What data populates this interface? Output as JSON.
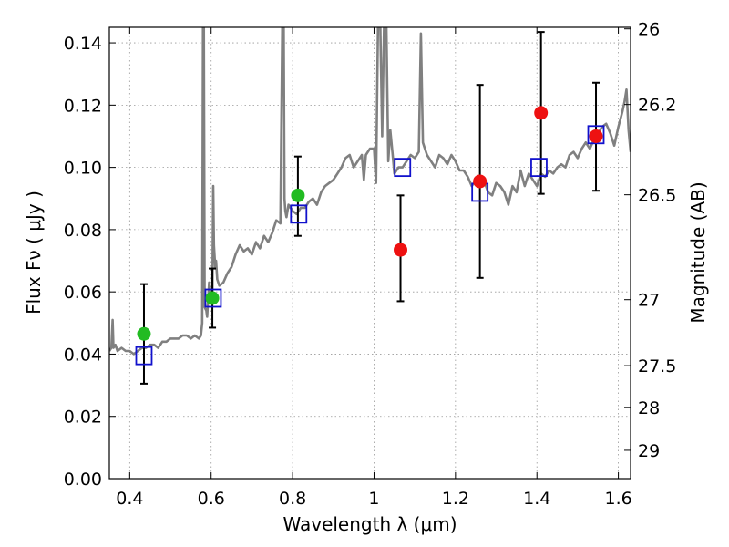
{
  "chart_data": {
    "type": "scatter",
    "xlabel": "Wavelength  λ (μm)",
    "ylabel": "Flux  Fν  ( μJy )",
    "y2label": "Magnitude (AB)",
    "xlim": [
      0.35,
      1.63
    ],
    "ylim": [
      0.0,
      0.145
    ],
    "grid": true,
    "xticks": [
      0.4,
      0.6,
      0.8,
      1.0,
      1.2,
      1.4,
      1.6
    ],
    "xtick_labels": [
      "0.4",
      "0.6",
      "0.8",
      "1",
      "1.2",
      "1.4",
      "1.6"
    ],
    "yticks": [
      0.0,
      0.02,
      0.04,
      0.06,
      0.08,
      0.1,
      0.12,
      0.14
    ],
    "ytick_labels": [
      "0.00",
      "0.02",
      "0.04",
      "0.06",
      "0.08",
      "0.10",
      "0.12",
      "0.14"
    ],
    "y2ticks": [
      {
        "flux": 0.1445,
        "label": "26"
      },
      {
        "flux": 0.1202,
        "label": "26.2"
      },
      {
        "flux": 0.0912,
        "label": "26.5"
      },
      {
        "flux": 0.0575,
        "label": "27"
      },
      {
        "flux": 0.0363,
        "label": "27.5"
      },
      {
        "flux": 0.0229,
        "label": "28"
      },
      {
        "flux": 0.0091,
        "label": "29"
      }
    ],
    "colors": {
      "model": "#808080",
      "green": "#22bb22",
      "red": "#ee1111",
      "squares": "#1111cc",
      "errorbar": "#000000",
      "grid": "#999999"
    },
    "model_spectrum": {
      "x": [
        0.35,
        0.355,
        0.358,
        0.36,
        0.365,
        0.37,
        0.38,
        0.39,
        0.4,
        0.41,
        0.42,
        0.43,
        0.44,
        0.45,
        0.46,
        0.47,
        0.48,
        0.49,
        0.5,
        0.51,
        0.52,
        0.53,
        0.54,
        0.55,
        0.56,
        0.57,
        0.575,
        0.578,
        0.58,
        0.582,
        0.584,
        0.588,
        0.59,
        0.595,
        0.6,
        0.603,
        0.605,
        0.607,
        0.61,
        0.612,
        0.615,
        0.62,
        0.63,
        0.64,
        0.65,
        0.66,
        0.67,
        0.68,
        0.69,
        0.7,
        0.71,
        0.72,
        0.73,
        0.74,
        0.75,
        0.76,
        0.77,
        0.775,
        0.778,
        0.78,
        0.782,
        0.785,
        0.79,
        0.8,
        0.81,
        0.82,
        0.83,
        0.84,
        0.85,
        0.86,
        0.87,
        0.88,
        0.89,
        0.9,
        0.91,
        0.92,
        0.93,
        0.94,
        0.95,
        0.96,
        0.97,
        0.975,
        0.98,
        0.99,
        1.0,
        1.005,
        1.01,
        1.015,
        1.02,
        1.025,
        1.03,
        1.035,
        1.04,
        1.045,
        1.05,
        1.06,
        1.07,
        1.08,
        1.09,
        1.1,
        1.11,
        1.115,
        1.12,
        1.125,
        1.13,
        1.14,
        1.15,
        1.16,
        1.17,
        1.18,
        1.19,
        1.2,
        1.21,
        1.22,
        1.23,
        1.24,
        1.25,
        1.26,
        1.27,
        1.28,
        1.29,
        1.3,
        1.31,
        1.32,
        1.33,
        1.34,
        1.35,
        1.36,
        1.37,
        1.375,
        1.38,
        1.39,
        1.4,
        1.41,
        1.42,
        1.43,
        1.44,
        1.45,
        1.46,
        1.47,
        1.48,
        1.49,
        1.5,
        1.51,
        1.52,
        1.53,
        1.54,
        1.55,
        1.56,
        1.57,
        1.58,
        1.59,
        1.6,
        1.61,
        1.615,
        1.62,
        1.625,
        1.63
      ],
      "y": [
        0.041,
        0.042,
        0.051,
        0.042,
        0.043,
        0.041,
        0.042,
        0.041,
        0.041,
        0.04,
        0.041,
        0.042,
        0.042,
        0.043,
        0.043,
        0.042,
        0.044,
        0.044,
        0.045,
        0.045,
        0.045,
        0.046,
        0.046,
        0.045,
        0.046,
        0.045,
        0.046,
        0.05,
        0.148,
        0.148,
        0.055,
        0.054,
        0.052,
        0.063,
        0.058,
        0.06,
        0.094,
        0.075,
        0.068,
        0.07,
        0.064,
        0.062,
        0.063,
        0.066,
        0.068,
        0.072,
        0.075,
        0.073,
        0.074,
        0.072,
        0.076,
        0.074,
        0.078,
        0.076,
        0.079,
        0.083,
        0.082,
        0.148,
        0.148,
        0.09,
        0.086,
        0.084,
        0.088,
        0.086,
        0.085,
        0.087,
        0.087,
        0.089,
        0.09,
        0.088,
        0.092,
        0.094,
        0.095,
        0.096,
        0.098,
        0.1,
        0.103,
        0.104,
        0.1,
        0.102,
        0.104,
        0.096,
        0.104,
        0.106,
        0.106,
        0.095,
        0.148,
        0.148,
        0.11,
        0.148,
        0.148,
        0.102,
        0.112,
        0.105,
        0.098,
        0.1,
        0.1,
        0.102,
        0.104,
        0.103,
        0.105,
        0.143,
        0.108,
        0.106,
        0.104,
        0.102,
        0.1,
        0.104,
        0.103,
        0.101,
        0.104,
        0.102,
        0.099,
        0.099,
        0.097,
        0.094,
        0.096,
        0.094,
        0.096,
        0.092,
        0.091,
        0.095,
        0.094,
        0.092,
        0.088,
        0.094,
        0.092,
        0.099,
        0.094,
        0.096,
        0.098,
        0.096,
        0.094,
        0.098,
        0.097,
        0.099,
        0.098,
        0.1,
        0.101,
        0.1,
        0.104,
        0.105,
        0.103,
        0.106,
        0.108,
        0.106,
        0.109,
        0.111,
        0.113,
        0.114,
        0.111,
        0.107,
        0.113,
        0.118,
        0.121,
        0.125,
        0.112,
        0.105
      ],
      "clip_max": 0.148
    },
    "series": [
      {
        "marker": "circle",
        "color": "green",
        "x": [
          0.435,
          0.603,
          0.813
        ],
        "y": [
          0.0465,
          0.058,
          0.091
        ],
        "err_low": [
          0.0305,
          0.0485,
          0.078
        ],
        "err_high": [
          0.0625,
          0.0675,
          0.1035
        ]
      },
      {
        "marker": "circle",
        "color": "red",
        "x": [
          1.065,
          1.26,
          1.41,
          1.545
        ],
        "y": [
          0.0735,
          0.0955,
          0.1175,
          0.11
        ],
        "err_low": [
          0.057,
          0.0645,
          0.0915,
          0.0925
        ],
        "err_high": [
          0.091,
          0.1265,
          0.1435,
          0.1272
        ]
      },
      {
        "marker": "square",
        "color": "squares",
        "x": [
          0.435,
          0.605,
          0.815,
          1.07,
          1.26,
          1.405,
          1.545
        ],
        "y": [
          0.0395,
          0.058,
          0.085,
          0.1,
          0.092,
          0.1,
          0.1105
        ]
      }
    ]
  }
}
